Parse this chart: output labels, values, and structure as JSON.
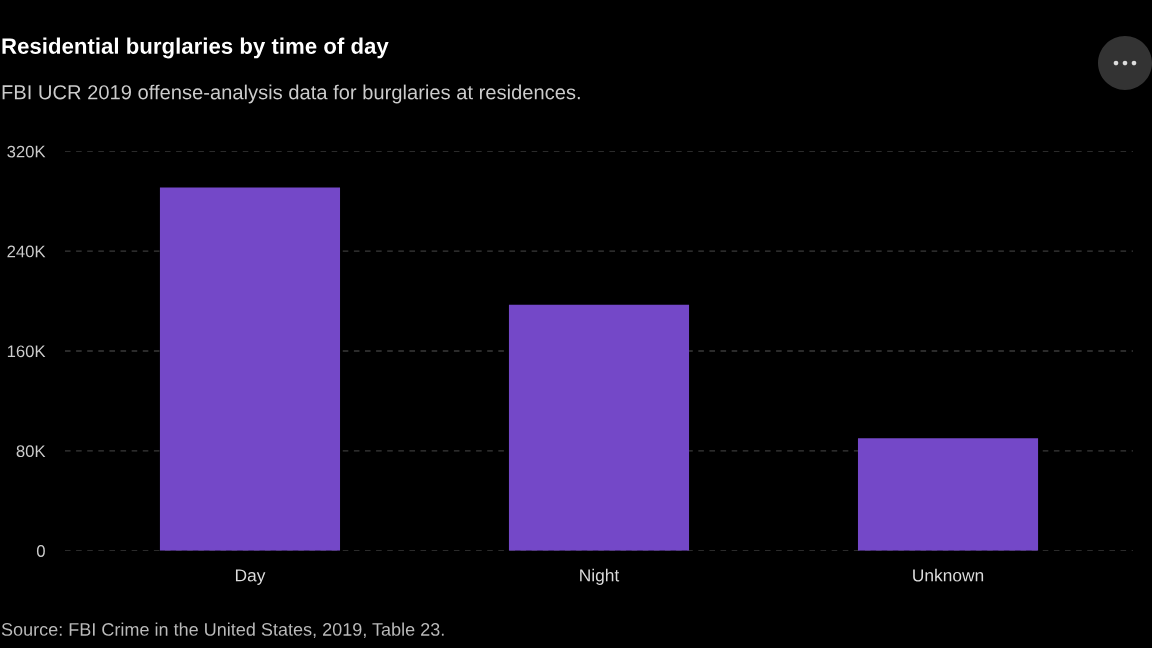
{
  "chart_data": {
    "type": "bar",
    "title": "Residential burglaries by time of day",
    "subtitle": "FBI UCR 2019 offense-analysis data for burglaries at residences.",
    "categories": [
      "Day",
      "Night",
      "Unknown"
    ],
    "values": [
      291000,
      197000,
      90000
    ],
    "color": "#7448c8",
    "ylim": [
      0,
      320000
    ],
    "yticks": [
      0,
      {
        "value": 80000,
        "label": "80K"
      },
      {
        "value": 160000,
        "label": "160K"
      },
      {
        "value": 240000,
        "label": "240K"
      },
      {
        "value": 320000,
        "label": "320K"
      }
    ],
    "grid": "y",
    "annotations": [
      "Source: FBI Crime in the United States, 2019, Table 23."
    ]
  }
}
